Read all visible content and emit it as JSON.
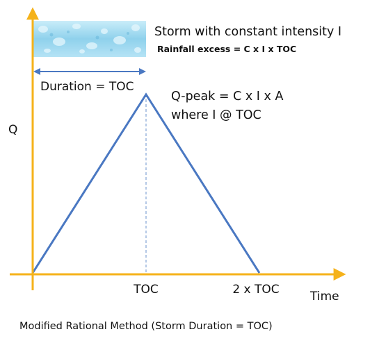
{
  "storm": {
    "title": "Storm with constant intensity I",
    "excess": "Rainfall excess = C x I x TOC"
  },
  "duration_label": "Duration = TOC",
  "peak": {
    "line1": "Q-peak = C x I x A",
    "line2": "where I @ TOC"
  },
  "axes": {
    "y_label": "Q",
    "x_label": "Time",
    "x_ticks": [
      "TOC",
      "2 x TOC"
    ]
  },
  "caption": "Modified Rational Method (Storm Duration = TOC)",
  "colors": {
    "axis": "#F5B21A",
    "hydrograph": "#4A78C2",
    "duration_arrow": "#4A78C2",
    "dashed_line": "#6B93CC",
    "rain_band": "#8FD1EC"
  }
}
